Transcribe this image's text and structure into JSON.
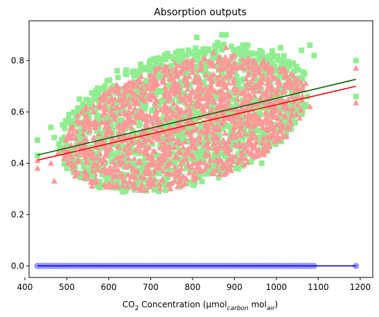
{
  "chart_data": {
    "type": "scatter",
    "title": "Absorption outputs",
    "xlabel": {
      "prefix": "CO",
      "sub": "2",
      "middle": " Concentration (μmol",
      "sub2": "carbon",
      "middle2": " mol",
      "sub3": "air",
      "suffix": ")"
    },
    "ylabel": "",
    "xlim": [
      410,
      1230
    ],
    "ylim": [
      -0.045,
      0.955
    ],
    "xticks": [
      {
        "value": 400,
        "label": "400"
      },
      {
        "value": 500,
        "label": "500"
      },
      {
        "value": 600,
        "label": "600"
      },
      {
        "value": 700,
        "label": "700"
      },
      {
        "value": 800,
        "label": "800"
      },
      {
        "value": 900,
        "label": "900"
      },
      {
        "value": 1000,
        "label": "1000"
      },
      {
        "value": 1100,
        "label": "1100"
      },
      {
        "value": 1200,
        "label": "1200"
      }
    ],
    "yticks": [
      {
        "value": 0.0,
        "label": "0.0"
      },
      {
        "value": 0.2,
        "label": "0.2"
      },
      {
        "value": 0.4,
        "label": "0.4"
      },
      {
        "value": 0.6,
        "label": "0.6"
      },
      {
        "value": 0.8,
        "label": "0.8"
      }
    ],
    "grid": false,
    "series": [
      {
        "marker": "square",
        "color": "#90EE90",
        "points": [
          [
            430,
            0.49
          ],
          [
            430,
            0.43
          ],
          [
            462,
            0.54
          ],
          [
            470,
            0.5
          ],
          [
            490,
            0.55
          ],
          [
            505,
            0.59
          ],
          [
            530,
            0.65
          ],
          [
            555,
            0.63
          ],
          [
            575,
            0.67
          ],
          [
            590,
            0.7
          ],
          [
            620,
            0.76
          ],
          [
            640,
            0.75
          ],
          [
            660,
            0.74
          ],
          [
            690,
            0.72
          ],
          [
            700,
            0.76
          ],
          [
            720,
            0.74
          ],
          [
            750,
            0.78
          ],
          [
            760,
            0.83
          ],
          [
            790,
            0.84
          ],
          [
            810,
            0.89
          ],
          [
            830,
            0.83
          ],
          [
            860,
            0.87
          ],
          [
            870,
            0.9
          ],
          [
            880,
            0.9
          ],
          [
            920,
            0.86
          ],
          [
            940,
            0.83
          ],
          [
            960,
            0.81
          ],
          [
            990,
            0.79
          ],
          [
            1010,
            0.85
          ],
          [
            1040,
            0.79
          ],
          [
            1060,
            0.84
          ],
          [
            1080,
            0.86
          ],
          [
            1090,
            0.82
          ],
          [
            1190,
            0.8
          ],
          [
            1190,
            0.66
          ],
          [
            965,
            0.4
          ],
          [
            600,
            0.34
          ],
          [
            560,
            0.35
          ],
          [
            500,
            0.38
          ],
          [
            720,
            0.36
          ],
          [
            850,
            0.39
          ]
        ]
      },
      {
        "marker": "triangle",
        "color": "#FF9999",
        "points": [
          [
            430,
            0.41
          ],
          [
            430,
            0.38
          ],
          [
            462,
            0.4
          ],
          [
            480,
            0.44
          ],
          [
            500,
            0.5
          ],
          [
            510,
            0.47
          ],
          [
            540,
            0.56
          ],
          [
            560,
            0.55
          ],
          [
            590,
            0.61
          ],
          [
            610,
            0.63
          ],
          [
            630,
            0.65
          ],
          [
            660,
            0.7
          ],
          [
            700,
            0.72
          ],
          [
            730,
            0.73
          ],
          [
            760,
            0.77
          ],
          [
            800,
            0.8
          ],
          [
            820,
            0.79
          ],
          [
            850,
            0.83
          ],
          [
            880,
            0.85
          ],
          [
            900,
            0.82
          ],
          [
            930,
            0.79
          ],
          [
            960,
            0.75
          ],
          [
            990,
            0.77
          ],
          [
            1030,
            0.72
          ],
          [
            1050,
            0.7
          ],
          [
            1070,
            0.71
          ],
          [
            1080,
            0.62
          ],
          [
            1190,
            0.77
          ],
          [
            1190,
            0.635
          ],
          [
            560,
            0.31
          ],
          [
            600,
            0.32
          ],
          [
            650,
            0.33
          ],
          [
            700,
            0.34
          ],
          [
            760,
            0.35
          ],
          [
            820,
            0.37
          ],
          [
            870,
            0.38
          ],
          [
            920,
            0.44
          ],
          [
            980,
            0.5
          ],
          [
            1030,
            0.54
          ],
          [
            470,
            0.33
          ],
          [
            520,
            0.35
          ]
        ]
      },
      {
        "marker": "circle",
        "color": "#9999FF",
        "points": [
          [
            430,
            0.0
          ],
          [
            435,
            0.0
          ],
          [
            465,
            0.0
          ],
          [
            480,
            0.0
          ],
          [
            1050,
            0.0
          ],
          [
            1080,
            0.0
          ],
          [
            1190,
            0.0
          ]
        ]
      }
    ],
    "clouds": [
      {
        "color": "#90EE90",
        "center": [
          780,
          0.575
        ],
        "x_radius": 300,
        "y_radius": 0.27,
        "tilt_slope": 0.00035
      },
      {
        "color": "#FF9999",
        "center": [
          780,
          0.555
        ],
        "x_radius": 290,
        "y_radius": 0.245,
        "tilt_slope": 0.00033
      }
    ],
    "baseline_band": {
      "color": "#9999FF",
      "y": 0.0,
      "x_range": [
        430,
        1090
      ]
    },
    "fit_lines": [
      {
        "color": "#006400",
        "x": [
          430,
          1190
        ],
        "y": [
          0.432,
          0.727
        ]
      },
      {
        "color": "#FF0000",
        "x": [
          430,
          1190
        ],
        "y": [
          0.412,
          0.7
        ]
      },
      {
        "color": "#0000FF",
        "x": [
          430,
          1190
        ],
        "y": [
          0.0,
          0.0
        ]
      }
    ]
  }
}
